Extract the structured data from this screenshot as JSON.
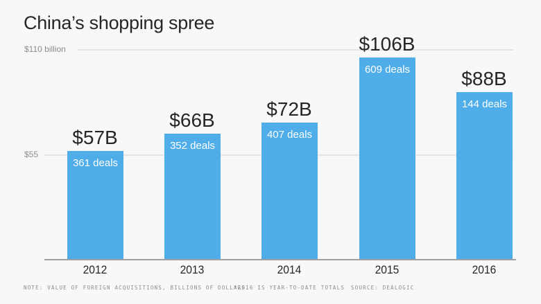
{
  "chart_data": {
    "type": "bar",
    "title": "China’s shopping spree",
    "categories": [
      "2012",
      "2013",
      "2014",
      "2015",
      "2016"
    ],
    "values": [
      57,
      66,
      72,
      106,
      88
    ],
    "value_labels": [
      "$57B",
      "$66B",
      "$72B",
      "$106B",
      "$88B"
    ],
    "deal_counts": [
      "361 deals",
      "352 deals",
      "407 deals",
      "609 deals",
      "144 deals"
    ],
    "ylabel": "Billions of dollars",
    "xlabel": "",
    "ylim": [
      0,
      110
    ],
    "yticks": [
      {
        "value": 110,
        "label": "$110 billion"
      },
      {
        "value": 55,
        "label": "$55"
      }
    ],
    "grid": true,
    "bar_color": "#4fade9"
  },
  "footer": {
    "note": "Note: Value of foreign acquisitions, billions of dollars.",
    "ytd": "*2016 is year-to-date totals",
    "source": "Source: Dealogic"
  }
}
